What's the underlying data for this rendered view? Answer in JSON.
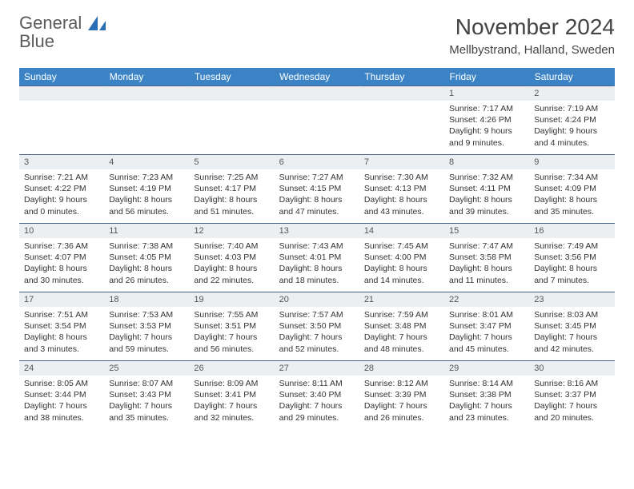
{
  "brand": {
    "word1": "General",
    "word2": "Blue"
  },
  "title": "November 2024",
  "location": "Mellbystrand, Halland, Sweden",
  "colors": {
    "header_bg": "#3b83c4",
    "header_text": "#ffffff",
    "row_border": "#46628a",
    "daynum_bg": "#eceff2",
    "body_text": "#333333",
    "brand_gray": "#5a5a5a",
    "brand_blue": "#2a6fb5",
    "page_bg": "#ffffff"
  },
  "dayNames": [
    "Sunday",
    "Monday",
    "Tuesday",
    "Wednesday",
    "Thursday",
    "Friday",
    "Saturday"
  ],
  "weeks": [
    [
      null,
      null,
      null,
      null,
      null,
      {
        "n": "1",
        "sunrise": "7:17 AM",
        "sunset": "4:26 PM",
        "daylight": "9 hours and 9 minutes."
      },
      {
        "n": "2",
        "sunrise": "7:19 AM",
        "sunset": "4:24 PM",
        "daylight": "9 hours and 4 minutes."
      }
    ],
    [
      {
        "n": "3",
        "sunrise": "7:21 AM",
        "sunset": "4:22 PM",
        "daylight": "9 hours and 0 minutes."
      },
      {
        "n": "4",
        "sunrise": "7:23 AM",
        "sunset": "4:19 PM",
        "daylight": "8 hours and 56 minutes."
      },
      {
        "n": "5",
        "sunrise": "7:25 AM",
        "sunset": "4:17 PM",
        "daylight": "8 hours and 51 minutes."
      },
      {
        "n": "6",
        "sunrise": "7:27 AM",
        "sunset": "4:15 PM",
        "daylight": "8 hours and 47 minutes."
      },
      {
        "n": "7",
        "sunrise": "7:30 AM",
        "sunset": "4:13 PM",
        "daylight": "8 hours and 43 minutes."
      },
      {
        "n": "8",
        "sunrise": "7:32 AM",
        "sunset": "4:11 PM",
        "daylight": "8 hours and 39 minutes."
      },
      {
        "n": "9",
        "sunrise": "7:34 AM",
        "sunset": "4:09 PM",
        "daylight": "8 hours and 35 minutes."
      }
    ],
    [
      {
        "n": "10",
        "sunrise": "7:36 AM",
        "sunset": "4:07 PM",
        "daylight": "8 hours and 30 minutes."
      },
      {
        "n": "11",
        "sunrise": "7:38 AM",
        "sunset": "4:05 PM",
        "daylight": "8 hours and 26 minutes."
      },
      {
        "n": "12",
        "sunrise": "7:40 AM",
        "sunset": "4:03 PM",
        "daylight": "8 hours and 22 minutes."
      },
      {
        "n": "13",
        "sunrise": "7:43 AM",
        "sunset": "4:01 PM",
        "daylight": "8 hours and 18 minutes."
      },
      {
        "n": "14",
        "sunrise": "7:45 AM",
        "sunset": "4:00 PM",
        "daylight": "8 hours and 14 minutes."
      },
      {
        "n": "15",
        "sunrise": "7:47 AM",
        "sunset": "3:58 PM",
        "daylight": "8 hours and 11 minutes."
      },
      {
        "n": "16",
        "sunrise": "7:49 AM",
        "sunset": "3:56 PM",
        "daylight": "8 hours and 7 minutes."
      }
    ],
    [
      {
        "n": "17",
        "sunrise": "7:51 AM",
        "sunset": "3:54 PM",
        "daylight": "8 hours and 3 minutes."
      },
      {
        "n": "18",
        "sunrise": "7:53 AM",
        "sunset": "3:53 PM",
        "daylight": "7 hours and 59 minutes."
      },
      {
        "n": "19",
        "sunrise": "7:55 AM",
        "sunset": "3:51 PM",
        "daylight": "7 hours and 56 minutes."
      },
      {
        "n": "20",
        "sunrise": "7:57 AM",
        "sunset": "3:50 PM",
        "daylight": "7 hours and 52 minutes."
      },
      {
        "n": "21",
        "sunrise": "7:59 AM",
        "sunset": "3:48 PM",
        "daylight": "7 hours and 48 minutes."
      },
      {
        "n": "22",
        "sunrise": "8:01 AM",
        "sunset": "3:47 PM",
        "daylight": "7 hours and 45 minutes."
      },
      {
        "n": "23",
        "sunrise": "8:03 AM",
        "sunset": "3:45 PM",
        "daylight": "7 hours and 42 minutes."
      }
    ],
    [
      {
        "n": "24",
        "sunrise": "8:05 AM",
        "sunset": "3:44 PM",
        "daylight": "7 hours and 38 minutes."
      },
      {
        "n": "25",
        "sunrise": "8:07 AM",
        "sunset": "3:43 PM",
        "daylight": "7 hours and 35 minutes."
      },
      {
        "n": "26",
        "sunrise": "8:09 AM",
        "sunset": "3:41 PM",
        "daylight": "7 hours and 32 minutes."
      },
      {
        "n": "27",
        "sunrise": "8:11 AM",
        "sunset": "3:40 PM",
        "daylight": "7 hours and 29 minutes."
      },
      {
        "n": "28",
        "sunrise": "8:12 AM",
        "sunset": "3:39 PM",
        "daylight": "7 hours and 26 minutes."
      },
      {
        "n": "29",
        "sunrise": "8:14 AM",
        "sunset": "3:38 PM",
        "daylight": "7 hours and 23 minutes."
      },
      {
        "n": "30",
        "sunrise": "8:16 AM",
        "sunset": "3:37 PM",
        "daylight": "7 hours and 20 minutes."
      }
    ]
  ],
  "labels": {
    "sunrise": "Sunrise: ",
    "sunset": "Sunset: ",
    "daylight": "Daylight: "
  }
}
